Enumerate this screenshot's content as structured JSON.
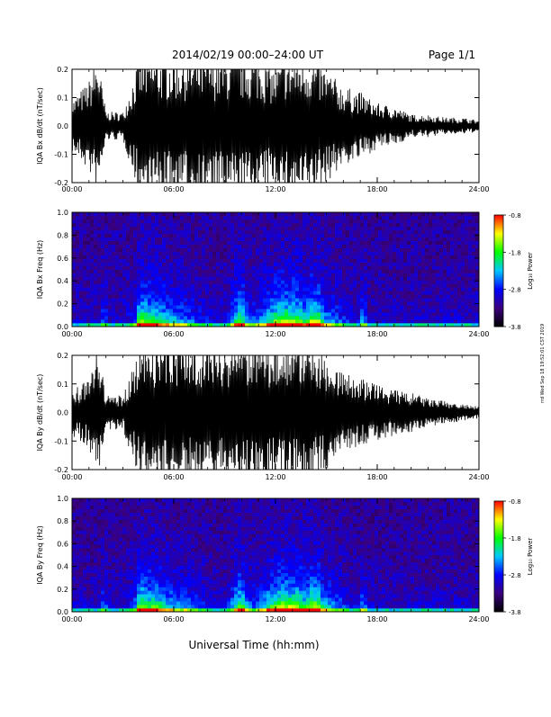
{
  "header": {
    "date_range": "2014/02/19   00:00–24:00 UT",
    "page": "Page 1/1"
  },
  "footer": {
    "xlabel": "Universal Time (hh:mm)",
    "side_note": "rrd Wed Sep 18 19:52:01 CST 2019"
  },
  "colorbar": {
    "title": "Log₁₀ Power",
    "ticks": [
      "-0.8",
      "-1.8",
      "-2.8",
      "-3.8"
    ]
  },
  "chart_data": [
    {
      "type": "line",
      "ylabel": "IQA Bx dB/dt (nT/sec)",
      "xlim_hours": [
        0,
        24
      ],
      "ylim": [
        -0.2,
        0.2
      ],
      "x_ticks": [
        "00:00",
        "06:00",
        "12:00",
        "18:00",
        "24:00"
      ],
      "y_ticks": [
        "0.2",
        "0.1",
        "0.0",
        "-0.1",
        "-0.2"
      ],
      "envelope": {
        "hours": [
          0,
          1,
          1.5,
          2,
          3,
          4,
          4.5,
          5,
          6,
          7,
          8,
          9,
          9.5,
          10,
          11,
          12,
          12.5,
          13,
          13.5,
          14,
          15,
          16,
          17,
          18,
          19,
          20,
          21,
          22,
          23,
          24
        ],
        "amplitude": [
          0.09,
          0.16,
          0.25,
          0.05,
          0.05,
          0.25,
          0.25,
          0.25,
          0.25,
          0.25,
          0.25,
          0.25,
          0.25,
          0.25,
          0.25,
          0.2,
          0.25,
          0.25,
          0.25,
          0.25,
          0.2,
          0.14,
          0.12,
          0.08,
          0.07,
          0.04,
          0.04,
          0.03,
          0.03,
          0.02
        ],
        "color": "#000000"
      }
    },
    {
      "type": "heatmap",
      "ylabel": "IQA Bx Freq (Hz)",
      "xlim_hours": [
        0,
        24
      ],
      "ylim": [
        0.0,
        1.0
      ],
      "x_ticks": [
        "00:00",
        "06:00",
        "12:00",
        "18:00",
        "24:00"
      ],
      "y_ticks": [
        "1.0",
        "0.8",
        "0.6",
        "0.4",
        "0.2",
        "0.0"
      ],
      "zlim": [
        -3.8,
        -0.8
      ],
      "colormap": [
        "#000000",
        "#3a007f",
        "#0000ff",
        "#00c8ff",
        "#00ff00",
        "#ffff00",
        "#ff0000"
      ]
    },
    {
      "type": "line",
      "ylabel": "IQA By dB/dt (nT/sec)",
      "xlim_hours": [
        0,
        24
      ],
      "ylim": [
        -0.2,
        0.2
      ],
      "x_ticks": [
        "00:00",
        "06:00",
        "12:00",
        "18:00",
        "24:00"
      ],
      "y_ticks": [
        "0.2",
        "0.1",
        "0.0",
        "-0.1",
        "-0.2"
      ],
      "envelope": {
        "hours": [
          0,
          1,
          1.5,
          2,
          3,
          4,
          4.5,
          5,
          6,
          7,
          8,
          9,
          9.5,
          10,
          11,
          12,
          12.5,
          13,
          13.5,
          14,
          15,
          16,
          17,
          18,
          19,
          20,
          21,
          22,
          23,
          24
        ],
        "amplitude": [
          0.08,
          0.12,
          0.25,
          0.06,
          0.06,
          0.25,
          0.25,
          0.25,
          0.25,
          0.25,
          0.25,
          0.25,
          0.25,
          0.25,
          0.25,
          0.25,
          0.25,
          0.25,
          0.25,
          0.25,
          0.2,
          0.14,
          0.12,
          0.1,
          0.08,
          0.07,
          0.05,
          0.04,
          0.03,
          0.02
        ],
        "color": "#000000"
      }
    },
    {
      "type": "heatmap",
      "ylabel": "IQA By Freq (Hz)",
      "xlim_hours": [
        0,
        24
      ],
      "ylim": [
        0.0,
        1.0
      ],
      "x_ticks": [
        "00:00",
        "06:00",
        "12:00",
        "18:00",
        "24:00"
      ],
      "y_ticks": [
        "1.0",
        "0.8",
        "0.6",
        "0.4",
        "0.2",
        "0.0"
      ],
      "zlim": [
        -3.8,
        -0.8
      ],
      "colormap": [
        "#000000",
        "#3a007f",
        "#0000ff",
        "#00c8ff",
        "#00ff00",
        "#ffff00",
        "#ff0000"
      ]
    }
  ]
}
